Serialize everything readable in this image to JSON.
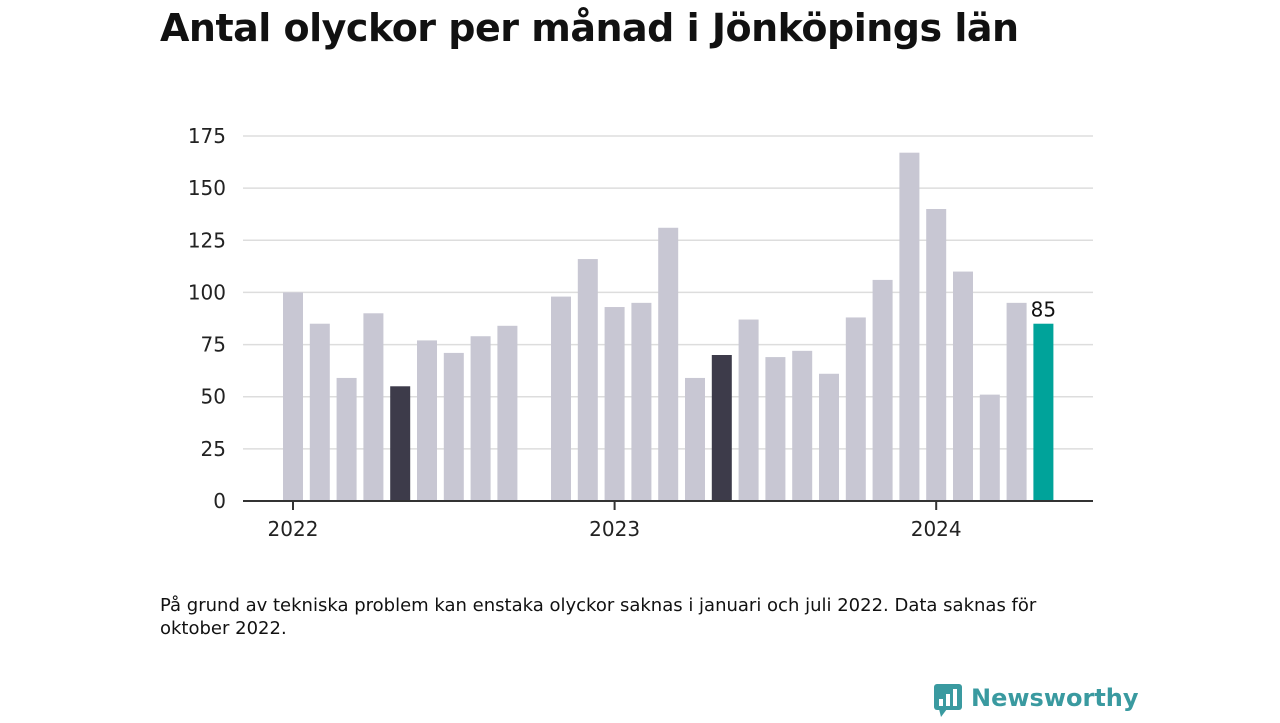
{
  "title": "Antal olyckor per månad i Jönköpings län",
  "note": "På grund av tekniska problem kan enstaka olyckor saknas i januari och juli 2022. Data saknas för oktober 2022.",
  "brand": {
    "name": "Newsworthy",
    "icon": "newsworthy-logo-icon",
    "color": "#3a9aa0"
  },
  "colors": {
    "default": "#c8c7d3",
    "highlight": "#3d3b4a",
    "latest": "#00a39a",
    "grid": "#dddddd",
    "axis": "#333333"
  },
  "chart_data": {
    "type": "bar",
    "title": "Antal olyckor per månad i Jönköpings län",
    "ylim": [
      0,
      175
    ],
    "yticks": [
      0,
      25,
      50,
      75,
      100,
      125,
      150,
      175
    ],
    "grid": true,
    "xtick_labels": [
      {
        "label": "2022",
        "month": "2022-01"
      },
      {
        "label": "2023",
        "month": "2023-01"
      },
      {
        "label": "2024",
        "month": "2024-01"
      }
    ],
    "bars": [
      {
        "month": "2022-01",
        "value": 100,
        "style": "default"
      },
      {
        "month": "2022-02",
        "value": 85,
        "style": "default"
      },
      {
        "month": "2022-03",
        "value": 59,
        "style": "default"
      },
      {
        "month": "2022-04",
        "value": 90,
        "style": "default"
      },
      {
        "month": "2022-05",
        "value": 55,
        "style": "highlight"
      },
      {
        "month": "2022-06",
        "value": 77,
        "style": "default"
      },
      {
        "month": "2022-07",
        "value": 71,
        "style": "default"
      },
      {
        "month": "2022-08",
        "value": 79,
        "style": "default"
      },
      {
        "month": "2022-09",
        "value": 84,
        "style": "default"
      },
      {
        "month": "2022-10",
        "value": null,
        "style": "default"
      },
      {
        "month": "2022-11",
        "value": 98,
        "style": "default"
      },
      {
        "month": "2022-12",
        "value": 116,
        "style": "default"
      },
      {
        "month": "2023-01",
        "value": 93,
        "style": "default"
      },
      {
        "month": "2023-02",
        "value": 95,
        "style": "default"
      },
      {
        "month": "2023-03",
        "value": 131,
        "style": "default"
      },
      {
        "month": "2023-04",
        "value": 59,
        "style": "default"
      },
      {
        "month": "2023-05",
        "value": 70,
        "style": "highlight"
      },
      {
        "month": "2023-06",
        "value": 87,
        "style": "default"
      },
      {
        "month": "2023-07",
        "value": 69,
        "style": "default"
      },
      {
        "month": "2023-08",
        "value": 72,
        "style": "default"
      },
      {
        "month": "2023-09",
        "value": 61,
        "style": "default"
      },
      {
        "month": "2023-10",
        "value": 88,
        "style": "default"
      },
      {
        "month": "2023-11",
        "value": 106,
        "style": "default"
      },
      {
        "month": "2023-12",
        "value": 167,
        "style": "default"
      },
      {
        "month": "2024-01",
        "value": 140,
        "style": "default"
      },
      {
        "month": "2024-02",
        "value": 110,
        "style": "default"
      },
      {
        "month": "2024-03",
        "value": 51,
        "style": "default"
      },
      {
        "month": "2024-04",
        "value": 95,
        "style": "default"
      },
      {
        "month": "2024-05",
        "value": 85,
        "style": "latest",
        "label": "85"
      }
    ]
  }
}
